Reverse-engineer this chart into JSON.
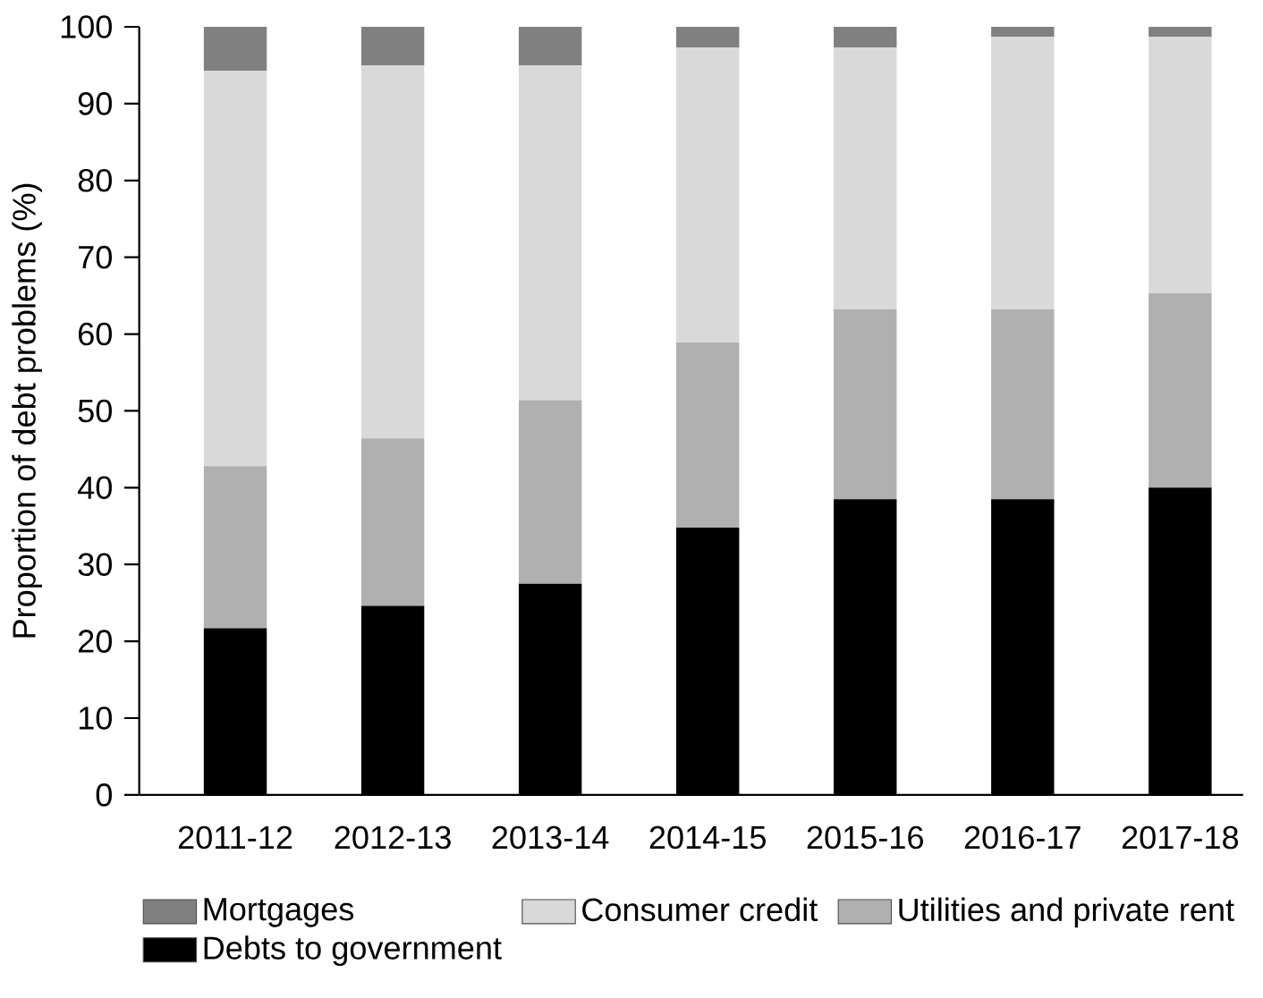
{
  "chart_data": {
    "type": "bar",
    "stacked": true,
    "ylabel": "Proportion of debt problems (%)",
    "categories": [
      "2011-12",
      "2012-13",
      "2013-14",
      "2014-15",
      "2015-16",
      "2016-17",
      "2017-18"
    ],
    "series": [
      {
        "name": "Debts to government",
        "color": "#000000",
        "values": [
          21.7,
          24.6,
          27.5,
          34.8,
          38.5,
          38.5,
          40.0
        ]
      },
      {
        "name": "Utilities and private rent",
        "color": "#b0b0b0",
        "values": [
          21.1,
          21.8,
          23.9,
          24.1,
          24.7,
          24.7,
          25.3
        ]
      },
      {
        "name": "Consumer credit",
        "color": "#d9d9d9",
        "values": [
          51.5,
          48.6,
          43.6,
          38.4,
          34.1,
          35.5,
          33.4
        ]
      },
      {
        "name": "Mortgages",
        "color": "#808080",
        "values": [
          5.7,
          5.0,
          5.0,
          2.7,
          2.7,
          1.3,
          1.3
        ]
      }
    ],
    "ylim": [
      0,
      100
    ],
    "yticks": [
      0,
      10,
      20,
      30,
      40,
      50,
      60,
      70,
      80,
      90,
      100
    ],
    "grid": false,
    "legend": "bottom"
  }
}
